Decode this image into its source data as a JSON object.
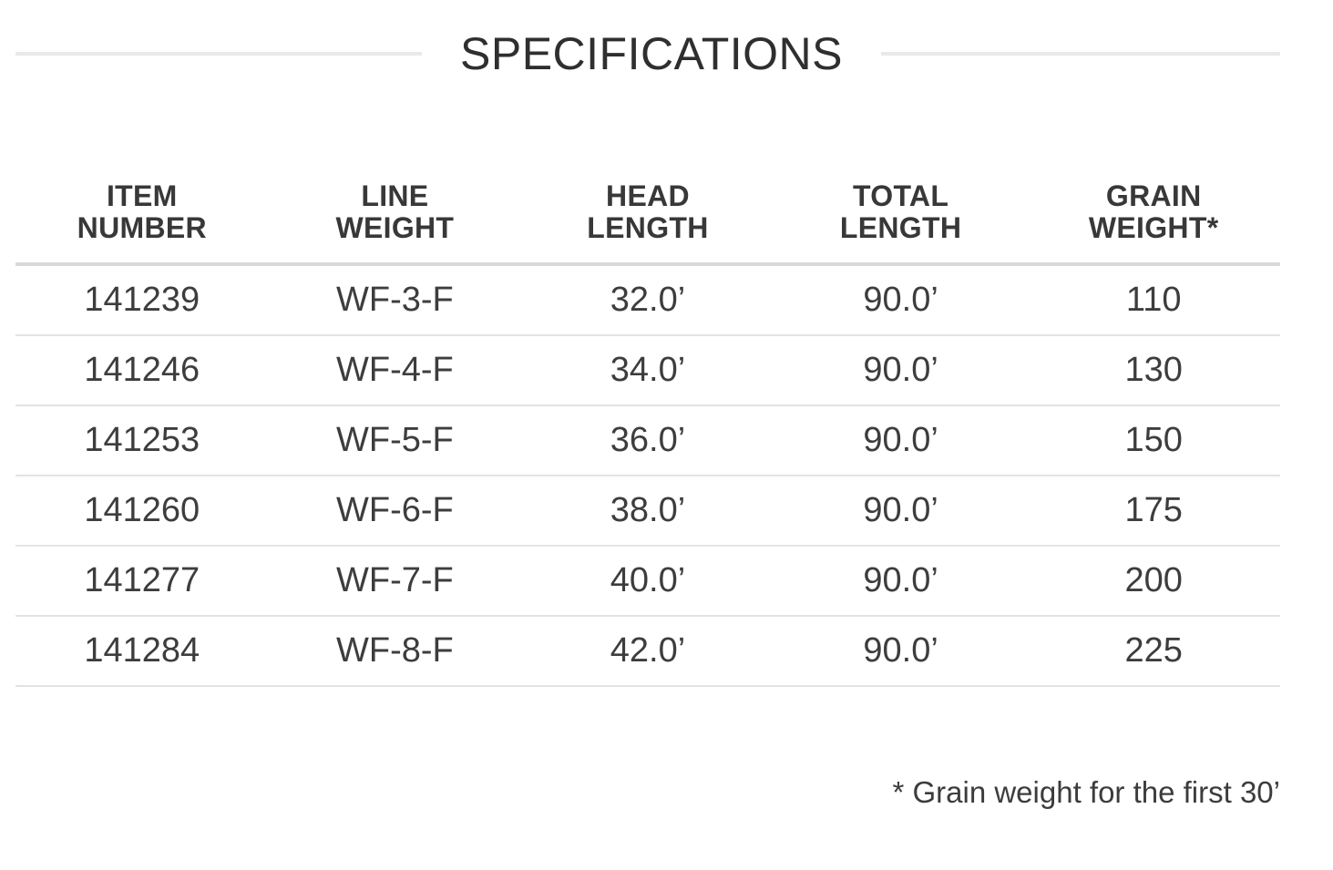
{
  "section": {
    "title": "SPECIFICATIONS"
  },
  "table": {
    "columns": [
      {
        "label": "ITEM\nNUMBER"
      },
      {
        "label": "LINE\nWEIGHT"
      },
      {
        "label": "HEAD\nLENGTH"
      },
      {
        "label": "TOTAL\nLENGTH"
      },
      {
        "label": "GRAIN\nWEIGHT*"
      }
    ],
    "rows": [
      {
        "item_number": "141239",
        "line_weight": "WF-3-F",
        "head_length": "32.0’",
        "total_length": "90.0’",
        "grain_weight": "110"
      },
      {
        "item_number": "141246",
        "line_weight": "WF-4-F",
        "head_length": "34.0’",
        "total_length": "90.0’",
        "grain_weight": "130"
      },
      {
        "item_number": "141253",
        "line_weight": "WF-5-F",
        "head_length": "36.0’",
        "total_length": "90.0’",
        "grain_weight": "150"
      },
      {
        "item_number": "141260",
        "line_weight": "WF-6-F",
        "head_length": "38.0’",
        "total_length": "90.0’",
        "grain_weight": "175"
      },
      {
        "item_number": "141277",
        "line_weight": "WF-7-F",
        "head_length": "40.0’",
        "total_length": "90.0’",
        "grain_weight": "200"
      },
      {
        "item_number": "141284",
        "line_weight": "WF-8-F",
        "head_length": "42.0’",
        "total_length": "90.0’",
        "grain_weight": "225"
      }
    ]
  },
  "footnote": "* Grain weight for the first 30’",
  "colors": {
    "background": "#ffffff",
    "title_text": "#2f2f2f",
    "header_text": "#383838",
    "cell_text": "#3d3d3d",
    "title_rule": "#e9e9e9",
    "header_rule": "#d9d9d9",
    "row_divider": "#e3e3e3"
  }
}
